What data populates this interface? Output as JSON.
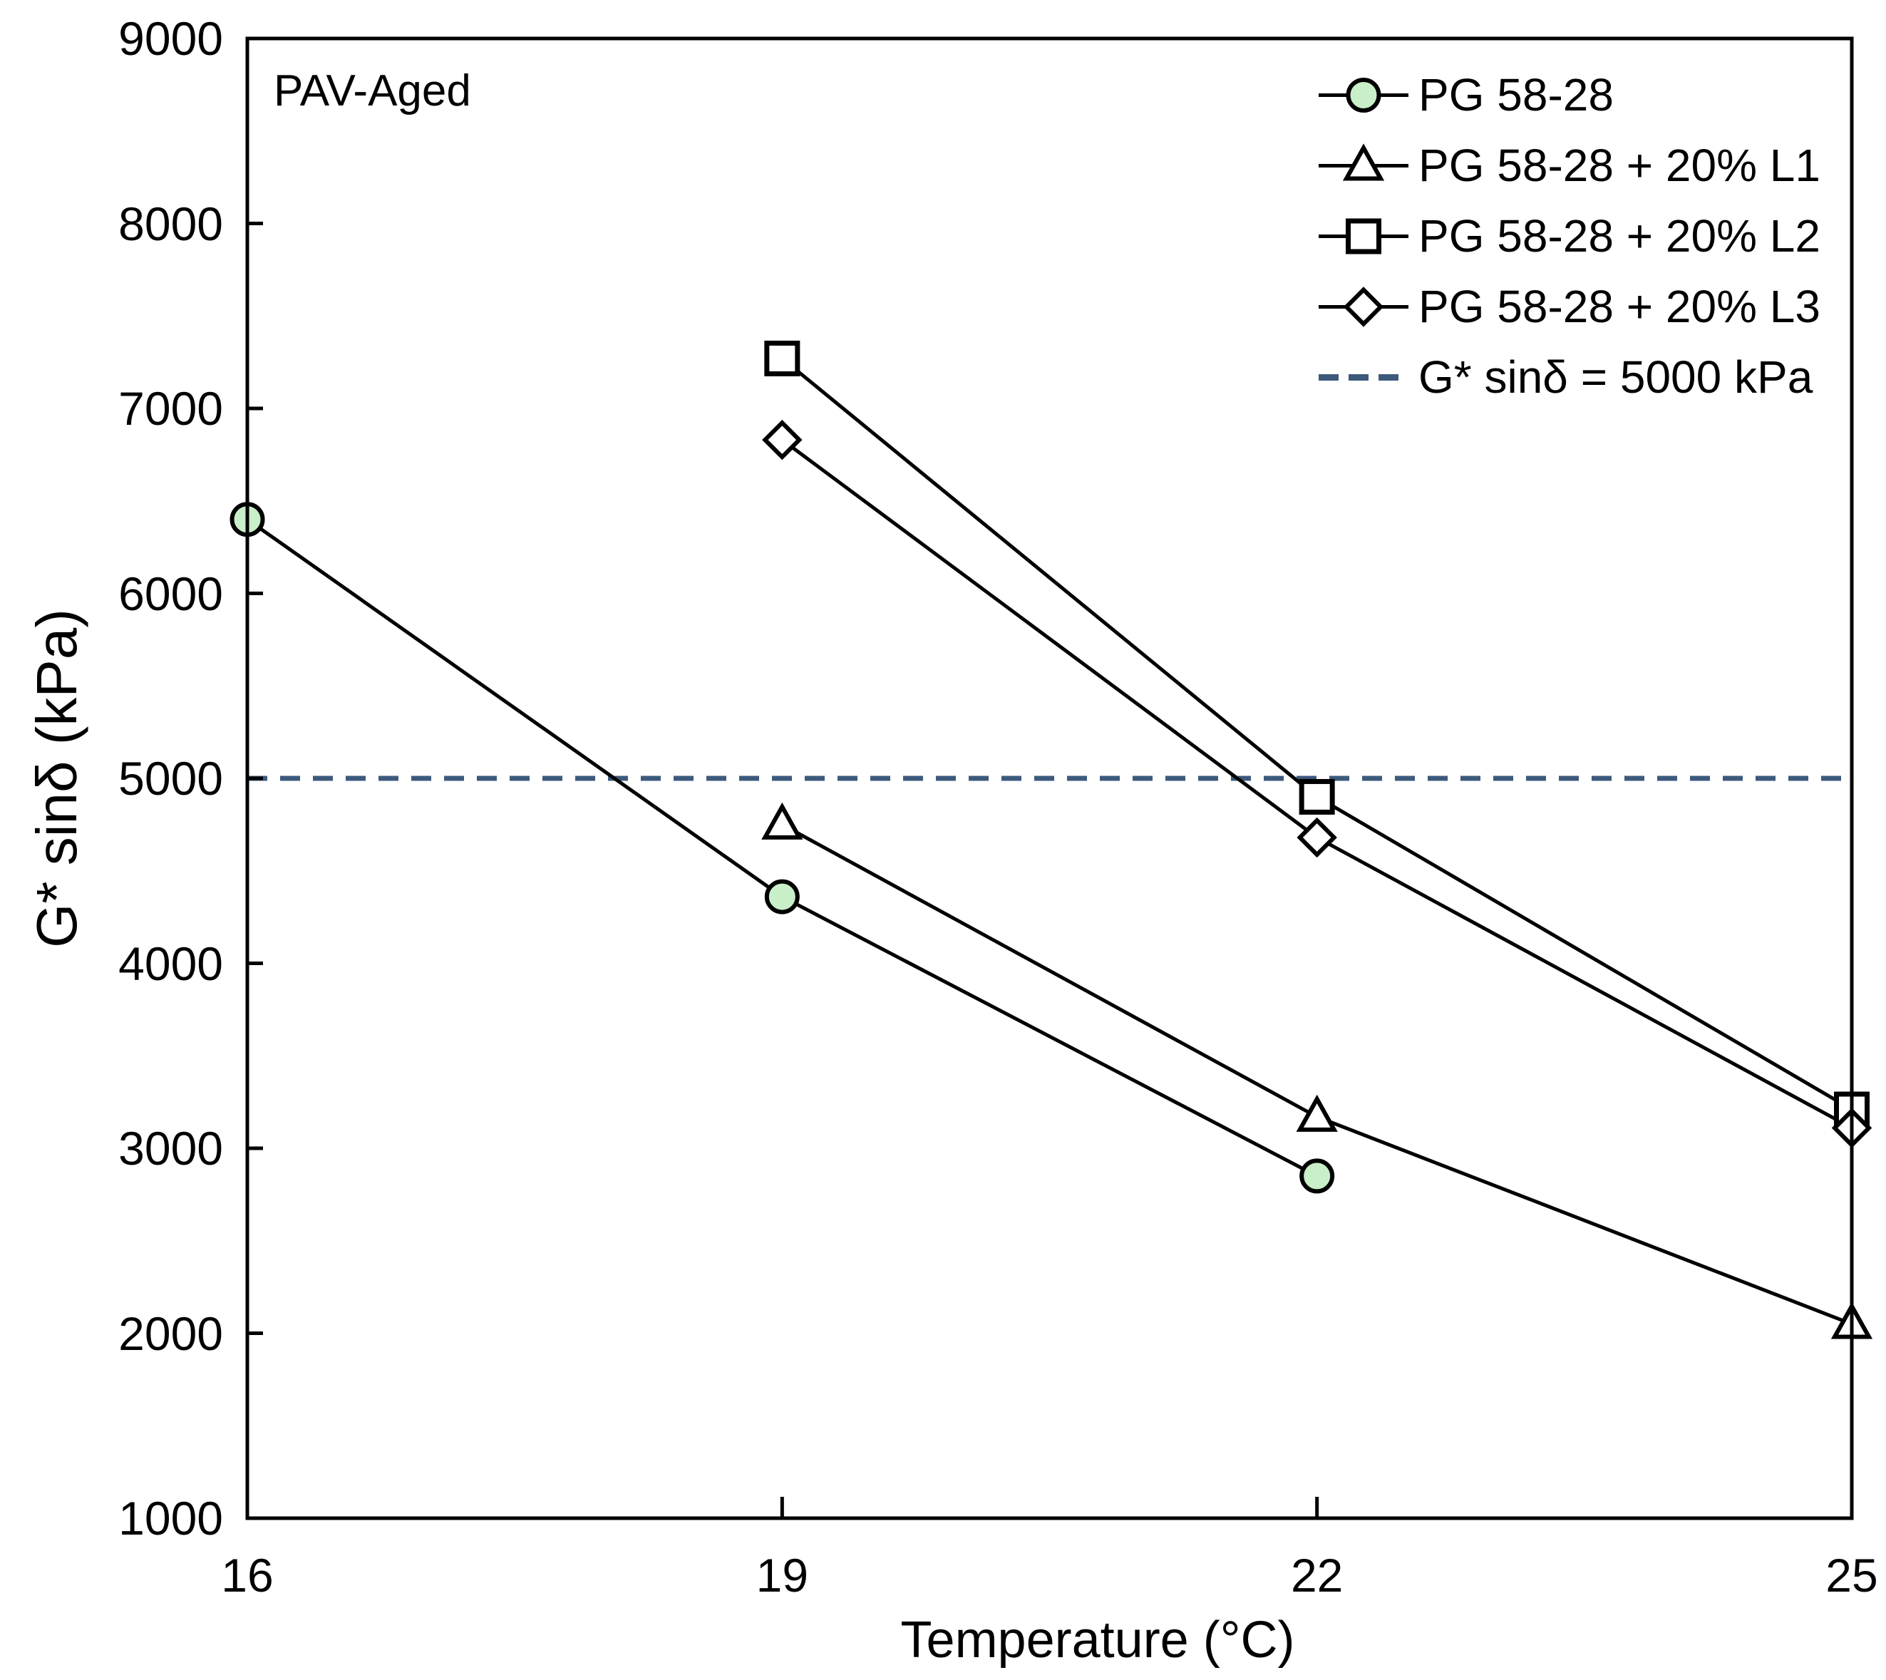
{
  "figure": {
    "annotation": "PAV-Aged",
    "background": "#ffffff",
    "axis_color": "#000000",
    "series_line_color": "#000000"
  },
  "legend": {
    "position": "top-right",
    "items": [
      {
        "label": "PG 58-28",
        "marker": "circle",
        "marker_fill": "#C9EFC9",
        "line": "solid",
        "line_color": "#000000"
      },
      {
        "label": "PG 58-28 + 20% L1",
        "marker": "triangle",
        "marker_fill": "#FFFFFF",
        "line": "solid",
        "line_color": "#000000"
      },
      {
        "label": "PG 58-28 + 20% L2",
        "marker": "square",
        "marker_fill": "#FFFFFF",
        "line": "solid",
        "line_color": "#000000"
      },
      {
        "label": "PG 58-28 + 20% L3",
        "marker": "diamond",
        "marker_fill": "#FFFFFF",
        "line": "solid",
        "line_color": "#000000"
      },
      {
        "label": "G* sinδ = 5000 kPa",
        "marker": "none",
        "marker_fill": "none",
        "line": "dashed",
        "line_color": "#3D5A7C"
      }
    ]
  },
  "chart_data": {
    "type": "line",
    "title": "",
    "annotation": "PAV-Aged",
    "xlabel": "Temperature (°C)",
    "ylabel": "G* sinδ (kPa)",
    "xlim": [
      16,
      25
    ],
    "ylim": [
      1000,
      9000
    ],
    "x_ticks": [
      16,
      19,
      22,
      25
    ],
    "y_ticks": [
      1000,
      2000,
      3000,
      4000,
      5000,
      6000,
      7000,
      8000,
      9000
    ],
    "grid": false,
    "legend_position": "top-right",
    "series": [
      {
        "name": "PG 58-28",
        "marker": "circle",
        "marker_fill": "#C9EFC9",
        "x": [
          16,
          19,
          22
        ],
        "y": [
          6400,
          4360,
          2850
        ]
      },
      {
        "name": "PG 58-28 + 20% L1",
        "marker": "triangle",
        "marker_fill": "#FFFFFF",
        "x": [
          19,
          22,
          25
        ],
        "y": [
          4750,
          3170,
          2050
        ]
      },
      {
        "name": "PG 58-28 + 20% L2",
        "marker": "square",
        "marker_fill": "#FFFFFF",
        "x": [
          19,
          22,
          25
        ],
        "y": [
          7270,
          4900,
          3210
        ]
      },
      {
        "name": "PG 58-28 + 20% L3",
        "marker": "diamond",
        "marker_fill": "#FFFFFF",
        "x": [
          19,
          22,
          25
        ],
        "y": [
          6830,
          4680,
          3110
        ]
      }
    ],
    "threshold": {
      "label": "G* sinδ = 5000 kPa",
      "value": 5000,
      "color": "#3D5A7C",
      "style": "dashed"
    }
  }
}
